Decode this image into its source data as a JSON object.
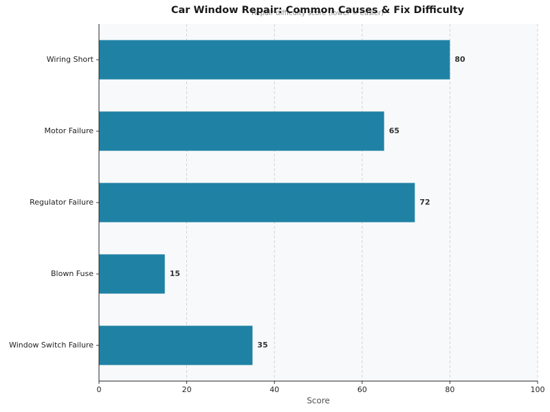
{
  "chart_data": {
    "type": "hbar",
    "title": "Car Window Repair: Common Causes & Fix Difficulty",
    "subtitle": "Repair difficulty score (lower = easier)",
    "x_label": "Score",
    "categories": [
      "Wiring Short",
      "Motor Failure",
      "Regulator Failure",
      "Blown Fuse",
      "Window Switch Failure"
    ],
    "values": [
      80,
      65,
      72,
      15,
      35
    ],
    "color": "#1f82a5",
    "xlim": [
      0,
      100
    ],
    "xticks": [
      0,
      20,
      40,
      60,
      80,
      100
    ],
    "grid": true
  }
}
